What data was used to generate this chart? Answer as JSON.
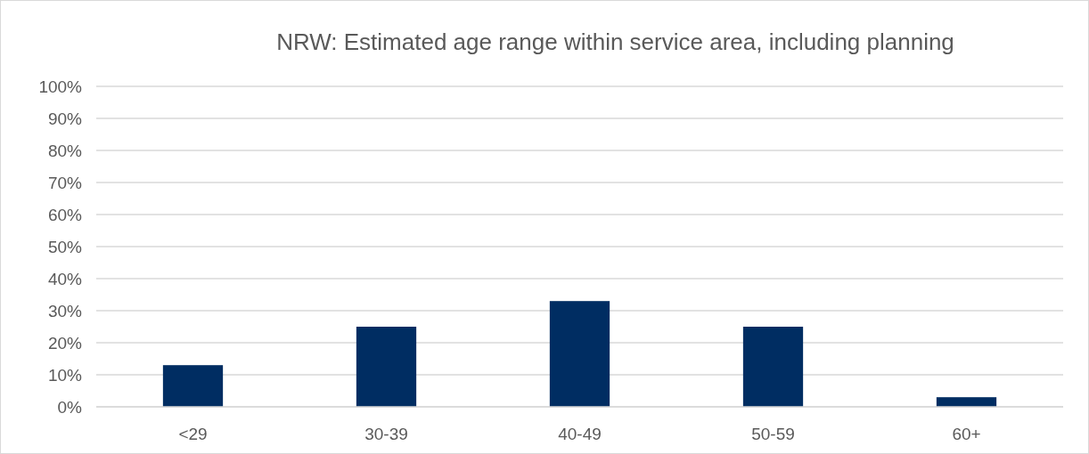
{
  "chart_data": {
    "type": "bar",
    "title": "NRW: Estimated age range within service area, including planning",
    "categories": [
      "<29",
      "30-39",
      "40-49",
      "50-59",
      "60+"
    ],
    "values": [
      13,
      25,
      33,
      25,
      3
    ],
    "color": "#002d62",
    "ylim": [
      0,
      100
    ],
    "yticks": [
      {
        "value": 0,
        "label": "0%"
      },
      {
        "value": 10,
        "label": "10%"
      },
      {
        "value": 20,
        "label": "20%"
      },
      {
        "value": 30,
        "label": "30%"
      },
      {
        "value": 40,
        "label": "40%"
      },
      {
        "value": 50,
        "label": "50%"
      },
      {
        "value": 60,
        "label": "60%"
      },
      {
        "value": 70,
        "label": "70%"
      },
      {
        "value": 80,
        "label": "80%"
      },
      {
        "value": 90,
        "label": "90%"
      },
      {
        "value": 100,
        "label": "100%"
      }
    ],
    "grid": "y"
  }
}
